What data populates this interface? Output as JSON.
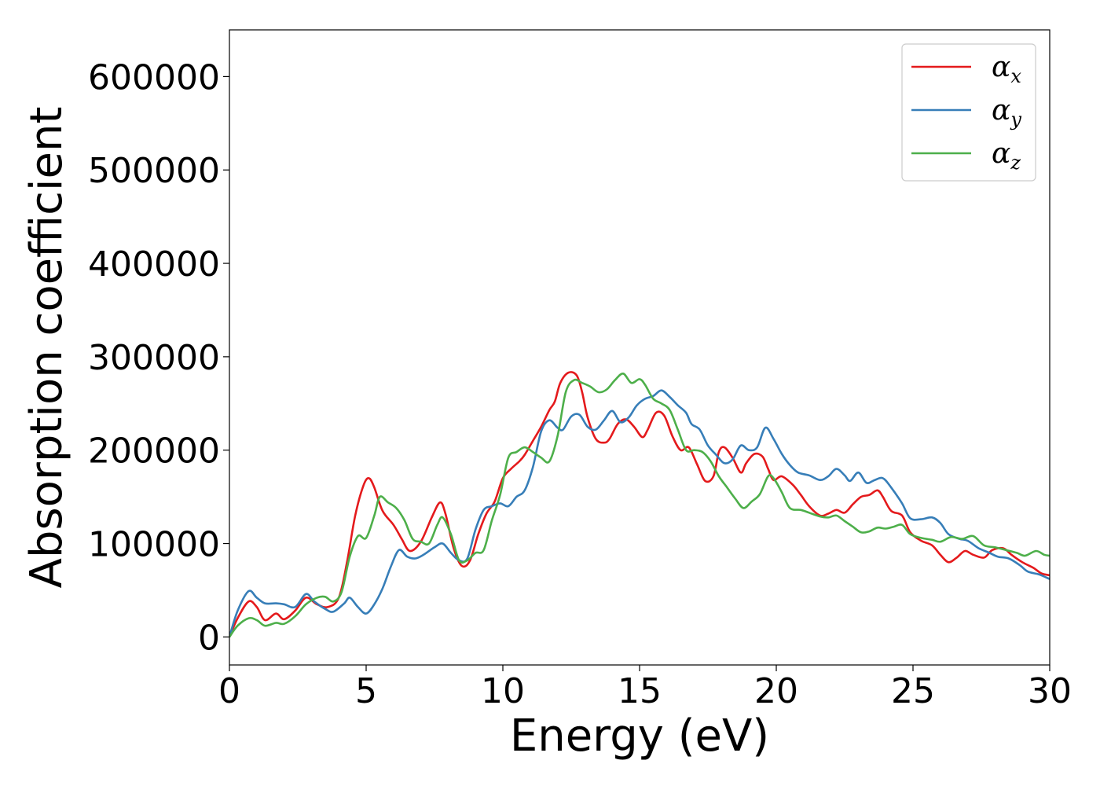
{
  "chart_data": {
    "type": "line",
    "title": "",
    "xlabel": "Energy (eV)",
    "ylabel": "Absorption coefficient",
    "xlim": [
      0,
      30
    ],
    "ylim": [
      -30000,
      650000
    ],
    "xticks": [
      0,
      5,
      10,
      15,
      20,
      25,
      30
    ],
    "xtick_labels": [
      "0",
      "5",
      "10",
      "15",
      "20",
      "25",
      "30"
    ],
    "yticks": [
      0,
      100000,
      200000,
      300000,
      400000,
      500000,
      600000
    ],
    "ytick_labels": [
      "0",
      "100000",
      "200000",
      "300000",
      "400000",
      "500000",
      "600000"
    ],
    "grid": false,
    "legend_position": "top-right",
    "series": [
      {
        "name": "α",
        "subscript": "x",
        "color": "#e41a1c",
        "points": [
          [
            0,
            0
          ],
          [
            0.3,
            20000
          ],
          [
            0.7,
            38000
          ],
          [
            1.0,
            32000
          ],
          [
            1.3,
            18000
          ],
          [
            1.7,
            25000
          ],
          [
            2.0,
            19000
          ],
          [
            2.4,
            28000
          ],
          [
            2.8,
            42000
          ],
          [
            3.2,
            35000
          ],
          [
            3.6,
            32000
          ],
          [
            4.0,
            42000
          ],
          [
            4.3,
            80000
          ],
          [
            4.6,
            130000
          ],
          [
            4.9,
            162000
          ],
          [
            5.1,
            170000
          ],
          [
            5.3,
            160000
          ],
          [
            5.6,
            135000
          ],
          [
            6.0,
            120000
          ],
          [
            6.3,
            105000
          ],
          [
            6.6,
            92000
          ],
          [
            7.0,
            102000
          ],
          [
            7.4,
            128000
          ],
          [
            7.7,
            144000
          ],
          [
            7.9,
            132000
          ],
          [
            8.2,
            95000
          ],
          [
            8.5,
            76000
          ],
          [
            8.8,
            82000
          ],
          [
            9.1,
            110000
          ],
          [
            9.4,
            132000
          ],
          [
            9.7,
            145000
          ],
          [
            10.0,
            170000
          ],
          [
            10.3,
            180000
          ],
          [
            10.6,
            188000
          ],
          [
            10.8,
            195000
          ],
          [
            11.1,
            210000
          ],
          [
            11.4,
            225000
          ],
          [
            11.7,
            243000
          ],
          [
            11.9,
            252000
          ],
          [
            12.1,
            272000
          ],
          [
            12.4,
            283000
          ],
          [
            12.7,
            280000
          ],
          [
            12.9,
            262000
          ],
          [
            13.1,
            235000
          ],
          [
            13.4,
            212000
          ],
          [
            13.7,
            208000
          ],
          [
            13.9,
            212000
          ],
          [
            14.2,
            228000
          ],
          [
            14.5,
            233000
          ],
          [
            14.8,
            225000
          ],
          [
            15.1,
            214000
          ],
          [
            15.3,
            222000
          ],
          [
            15.6,
            240000
          ],
          [
            15.9,
            237000
          ],
          [
            16.2,
            215000
          ],
          [
            16.5,
            200000
          ],
          [
            16.8,
            203000
          ],
          [
            17.1,
            185000
          ],
          [
            17.4,
            167000
          ],
          [
            17.7,
            172000
          ],
          [
            17.9,
            198000
          ],
          [
            18.1,
            203000
          ],
          [
            18.4,
            192000
          ],
          [
            18.7,
            176000
          ],
          [
            18.9,
            186000
          ],
          [
            19.2,
            196000
          ],
          [
            19.5,
            193000
          ],
          [
            19.7,
            180000
          ],
          [
            19.9,
            168000
          ],
          [
            20.2,
            172000
          ],
          [
            20.6,
            163000
          ],
          [
            20.9,
            152000
          ],
          [
            21.2,
            140000
          ],
          [
            21.6,
            130000
          ],
          [
            21.9,
            132000
          ],
          [
            22.2,
            136000
          ],
          [
            22.5,
            133000
          ],
          [
            22.8,
            142000
          ],
          [
            23.1,
            150000
          ],
          [
            23.4,
            152000
          ],
          [
            23.7,
            157000
          ],
          [
            23.9,
            150000
          ],
          [
            24.2,
            135000
          ],
          [
            24.6,
            130000
          ],
          [
            24.9,
            112000
          ],
          [
            25.3,
            103000
          ],
          [
            25.7,
            98000
          ],
          [
            26.0,
            88000
          ],
          [
            26.3,
            80000
          ],
          [
            26.6,
            85000
          ],
          [
            26.9,
            92000
          ],
          [
            27.2,
            88000
          ],
          [
            27.6,
            85000
          ],
          [
            27.9,
            93000
          ],
          [
            28.3,
            95000
          ],
          [
            28.6,
            88000
          ],
          [
            29.0,
            80000
          ],
          [
            29.4,
            74000
          ],
          [
            29.7,
            68000
          ],
          [
            30.0,
            66000
          ]
        ]
      },
      {
        "name": "α",
        "subscript": "y",
        "color": "#377eb8",
        "points": [
          [
            0,
            0
          ],
          [
            0.3,
            28000
          ],
          [
            0.7,
            49000
          ],
          [
            1.0,
            42000
          ],
          [
            1.3,
            36000
          ],
          [
            1.7,
            36000
          ],
          [
            2.0,
            35000
          ],
          [
            2.4,
            32000
          ],
          [
            2.8,
            46000
          ],
          [
            3.1,
            38000
          ],
          [
            3.5,
            30000
          ],
          [
            3.8,
            27000
          ],
          [
            4.2,
            36000
          ],
          [
            4.4,
            42000
          ],
          [
            4.7,
            32000
          ],
          [
            5.0,
            25000
          ],
          [
            5.3,
            35000
          ],
          [
            5.6,
            52000
          ],
          [
            5.9,
            75000
          ],
          [
            6.2,
            93000
          ],
          [
            6.5,
            86000
          ],
          [
            6.8,
            84000
          ],
          [
            7.1,
            88000
          ],
          [
            7.5,
            96000
          ],
          [
            7.8,
            100000
          ],
          [
            8.1,
            90000
          ],
          [
            8.4,
            82000
          ],
          [
            8.7,
            84000
          ],
          [
            9.0,
            115000
          ],
          [
            9.3,
            136000
          ],
          [
            9.6,
            140000
          ],
          [
            9.9,
            143000
          ],
          [
            10.2,
            140000
          ],
          [
            10.5,
            150000
          ],
          [
            10.8,
            157000
          ],
          [
            11.1,
            182000
          ],
          [
            11.4,
            220000
          ],
          [
            11.7,
            232000
          ],
          [
            12.0,
            224000
          ],
          [
            12.2,
            222000
          ],
          [
            12.5,
            236000
          ],
          [
            12.8,
            238000
          ],
          [
            13.1,
            225000
          ],
          [
            13.4,
            222000
          ],
          [
            13.7,
            232000
          ],
          [
            14.0,
            242000
          ],
          [
            14.3,
            230000
          ],
          [
            14.6,
            235000
          ],
          [
            14.9,
            248000
          ],
          [
            15.2,
            255000
          ],
          [
            15.5,
            258000
          ],
          [
            15.8,
            264000
          ],
          [
            16.1,
            257000
          ],
          [
            16.4,
            248000
          ],
          [
            16.7,
            240000
          ],
          [
            16.9,
            228000
          ],
          [
            17.2,
            222000
          ],
          [
            17.5,
            205000
          ],
          [
            17.8,
            195000
          ],
          [
            18.1,
            186000
          ],
          [
            18.4,
            190000
          ],
          [
            18.7,
            205000
          ],
          [
            19.0,
            200000
          ],
          [
            19.3,
            203000
          ],
          [
            19.6,
            224000
          ],
          [
            19.9,
            212000
          ],
          [
            20.2,
            196000
          ],
          [
            20.5,
            184000
          ],
          [
            20.8,
            176000
          ],
          [
            21.2,
            173000
          ],
          [
            21.6,
            168000
          ],
          [
            21.9,
            172000
          ],
          [
            22.2,
            180000
          ],
          [
            22.5,
            173000
          ],
          [
            22.7,
            167000
          ],
          [
            23.0,
            176000
          ],
          [
            23.3,
            165000
          ],
          [
            23.6,
            168000
          ],
          [
            23.9,
            170000
          ],
          [
            24.2,
            160000
          ],
          [
            24.6,
            143000
          ],
          [
            24.9,
            127000
          ],
          [
            25.3,
            126000
          ],
          [
            25.7,
            128000
          ],
          [
            26.0,
            122000
          ],
          [
            26.3,
            110000
          ],
          [
            26.7,
            105000
          ],
          [
            27.0,
            103000
          ],
          [
            27.4,
            95000
          ],
          [
            27.8,
            90000
          ],
          [
            28.1,
            86000
          ],
          [
            28.5,
            84000
          ],
          [
            28.9,
            77000
          ],
          [
            29.2,
            70000
          ],
          [
            29.6,
            67000
          ],
          [
            30.0,
            62000
          ]
        ]
      },
      {
        "name": "α",
        "subscript": "z",
        "color": "#4daf4a",
        "points": [
          [
            0,
            0
          ],
          [
            0.3,
            12000
          ],
          [
            0.7,
            20000
          ],
          [
            1.0,
            18000
          ],
          [
            1.3,
            12000
          ],
          [
            1.7,
            15000
          ],
          [
            2.0,
            14000
          ],
          [
            2.4,
            22000
          ],
          [
            2.8,
            35000
          ],
          [
            3.2,
            42000
          ],
          [
            3.5,
            43000
          ],
          [
            3.8,
            38000
          ],
          [
            4.1,
            48000
          ],
          [
            4.4,
            86000
          ],
          [
            4.7,
            108000
          ],
          [
            5.0,
            106000
          ],
          [
            5.3,
            130000
          ],
          [
            5.5,
            150000
          ],
          [
            5.8,
            144000
          ],
          [
            6.1,
            138000
          ],
          [
            6.4,
            125000
          ],
          [
            6.7,
            105000
          ],
          [
            7.0,
            102000
          ],
          [
            7.3,
            100000
          ],
          [
            7.6,
            120000
          ],
          [
            7.8,
            128000
          ],
          [
            8.1,
            110000
          ],
          [
            8.4,
            82000
          ],
          [
            8.7,
            82000
          ],
          [
            9.0,
            90000
          ],
          [
            9.3,
            93000
          ],
          [
            9.6,
            125000
          ],
          [
            9.9,
            152000
          ],
          [
            10.2,
            192000
          ],
          [
            10.5,
            198000
          ],
          [
            10.8,
            203000
          ],
          [
            11.1,
            198000
          ],
          [
            11.4,
            192000
          ],
          [
            11.7,
            188000
          ],
          [
            12.0,
            215000
          ],
          [
            12.3,
            262000
          ],
          [
            12.6,
            275000
          ],
          [
            12.9,
            272000
          ],
          [
            13.2,
            268000
          ],
          [
            13.5,
            262000
          ],
          [
            13.8,
            265000
          ],
          [
            14.1,
            275000
          ],
          [
            14.4,
            282000
          ],
          [
            14.7,
            272000
          ],
          [
            15.0,
            276000
          ],
          [
            15.2,
            270000
          ],
          [
            15.5,
            255000
          ],
          [
            15.8,
            250000
          ],
          [
            16.1,
            243000
          ],
          [
            16.4,
            222000
          ],
          [
            16.7,
            200000
          ],
          [
            17.0,
            200000
          ],
          [
            17.3,
            198000
          ],
          [
            17.6,
            188000
          ],
          [
            17.9,
            172000
          ],
          [
            18.2,
            160000
          ],
          [
            18.5,
            148000
          ],
          [
            18.8,
            138000
          ],
          [
            19.1,
            145000
          ],
          [
            19.4,
            153000
          ],
          [
            19.7,
            172000
          ],
          [
            19.9,
            170000
          ],
          [
            20.2,
            155000
          ],
          [
            20.5,
            138000
          ],
          [
            20.9,
            136000
          ],
          [
            21.2,
            133000
          ],
          [
            21.6,
            129000
          ],
          [
            21.9,
            128000
          ],
          [
            22.2,
            130000
          ],
          [
            22.5,
            124000
          ],
          [
            22.8,
            118000
          ],
          [
            23.1,
            112000
          ],
          [
            23.4,
            113000
          ],
          [
            23.7,
            117000
          ],
          [
            24.0,
            116000
          ],
          [
            24.3,
            118000
          ],
          [
            24.6,
            120000
          ],
          [
            24.9,
            110000
          ],
          [
            25.3,
            106000
          ],
          [
            25.7,
            104000
          ],
          [
            26.0,
            102000
          ],
          [
            26.4,
            107000
          ],
          [
            26.8,
            105000
          ],
          [
            27.2,
            108000
          ],
          [
            27.6,
            98000
          ],
          [
            28.0,
            96000
          ],
          [
            28.4,
            93000
          ],
          [
            28.8,
            90000
          ],
          [
            29.1,
            87000
          ],
          [
            29.5,
            92000
          ],
          [
            29.8,
            88000
          ],
          [
            30.0,
            87000
          ]
        ]
      }
    ]
  }
}
